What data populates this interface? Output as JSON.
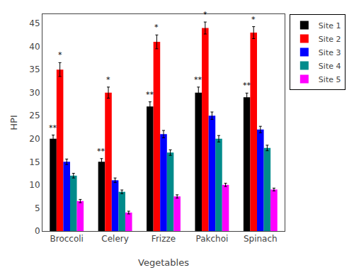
{
  "chart_data": {
    "type": "bar",
    "xlabel": "Vegetables",
    "ylabel": "HPI",
    "categories": [
      "Broccoli",
      "Celery",
      "Frizze",
      "Pakchoi",
      "Spinach"
    ],
    "series": [
      {
        "name": "Site 1",
        "color": "#000000",
        "values": [
          20.0,
          15.0,
          27.0,
          30.0,
          29.0
        ],
        "errors": [
          0.8,
          0.7,
          1.0,
          1.2,
          0.9
        ],
        "annotations": [
          "**",
          "**",
          "**",
          "**",
          "**"
        ]
      },
      {
        "name": "Site 2",
        "color": "#ff0000",
        "values": [
          35.0,
          30.0,
          41.0,
          44.0,
          43.0
        ],
        "errors": [
          1.5,
          1.2,
          1.5,
          1.3,
          1.3
        ],
        "annotations": [
          "*",
          "*",
          "*",
          "*",
          "*"
        ]
      },
      {
        "name": "Site 3",
        "color": "#0000ff",
        "values": [
          15.0,
          11.0,
          21.0,
          25.0,
          22.0
        ],
        "errors": [
          0.6,
          0.5,
          0.8,
          0.8,
          0.7
        ]
      },
      {
        "name": "Site 4",
        "color": "#008b8b",
        "values": [
          12.0,
          8.5,
          17.0,
          20.0,
          18.0
        ],
        "errors": [
          0.5,
          0.4,
          0.6,
          0.7,
          0.6
        ]
      },
      {
        "name": "Site 5",
        "color": "#ff00ff",
        "values": [
          6.5,
          4.0,
          7.5,
          10.0,
          9.0
        ],
        "errors": [
          0.35,
          0.3,
          0.35,
          0.35,
          0.3
        ]
      }
    ],
    "ylim": [
      0,
      47
    ],
    "yticks": [
      0,
      5,
      10,
      15,
      20,
      25,
      30,
      35,
      40,
      45
    ],
    "grid": false,
    "legend": "upper right"
  }
}
